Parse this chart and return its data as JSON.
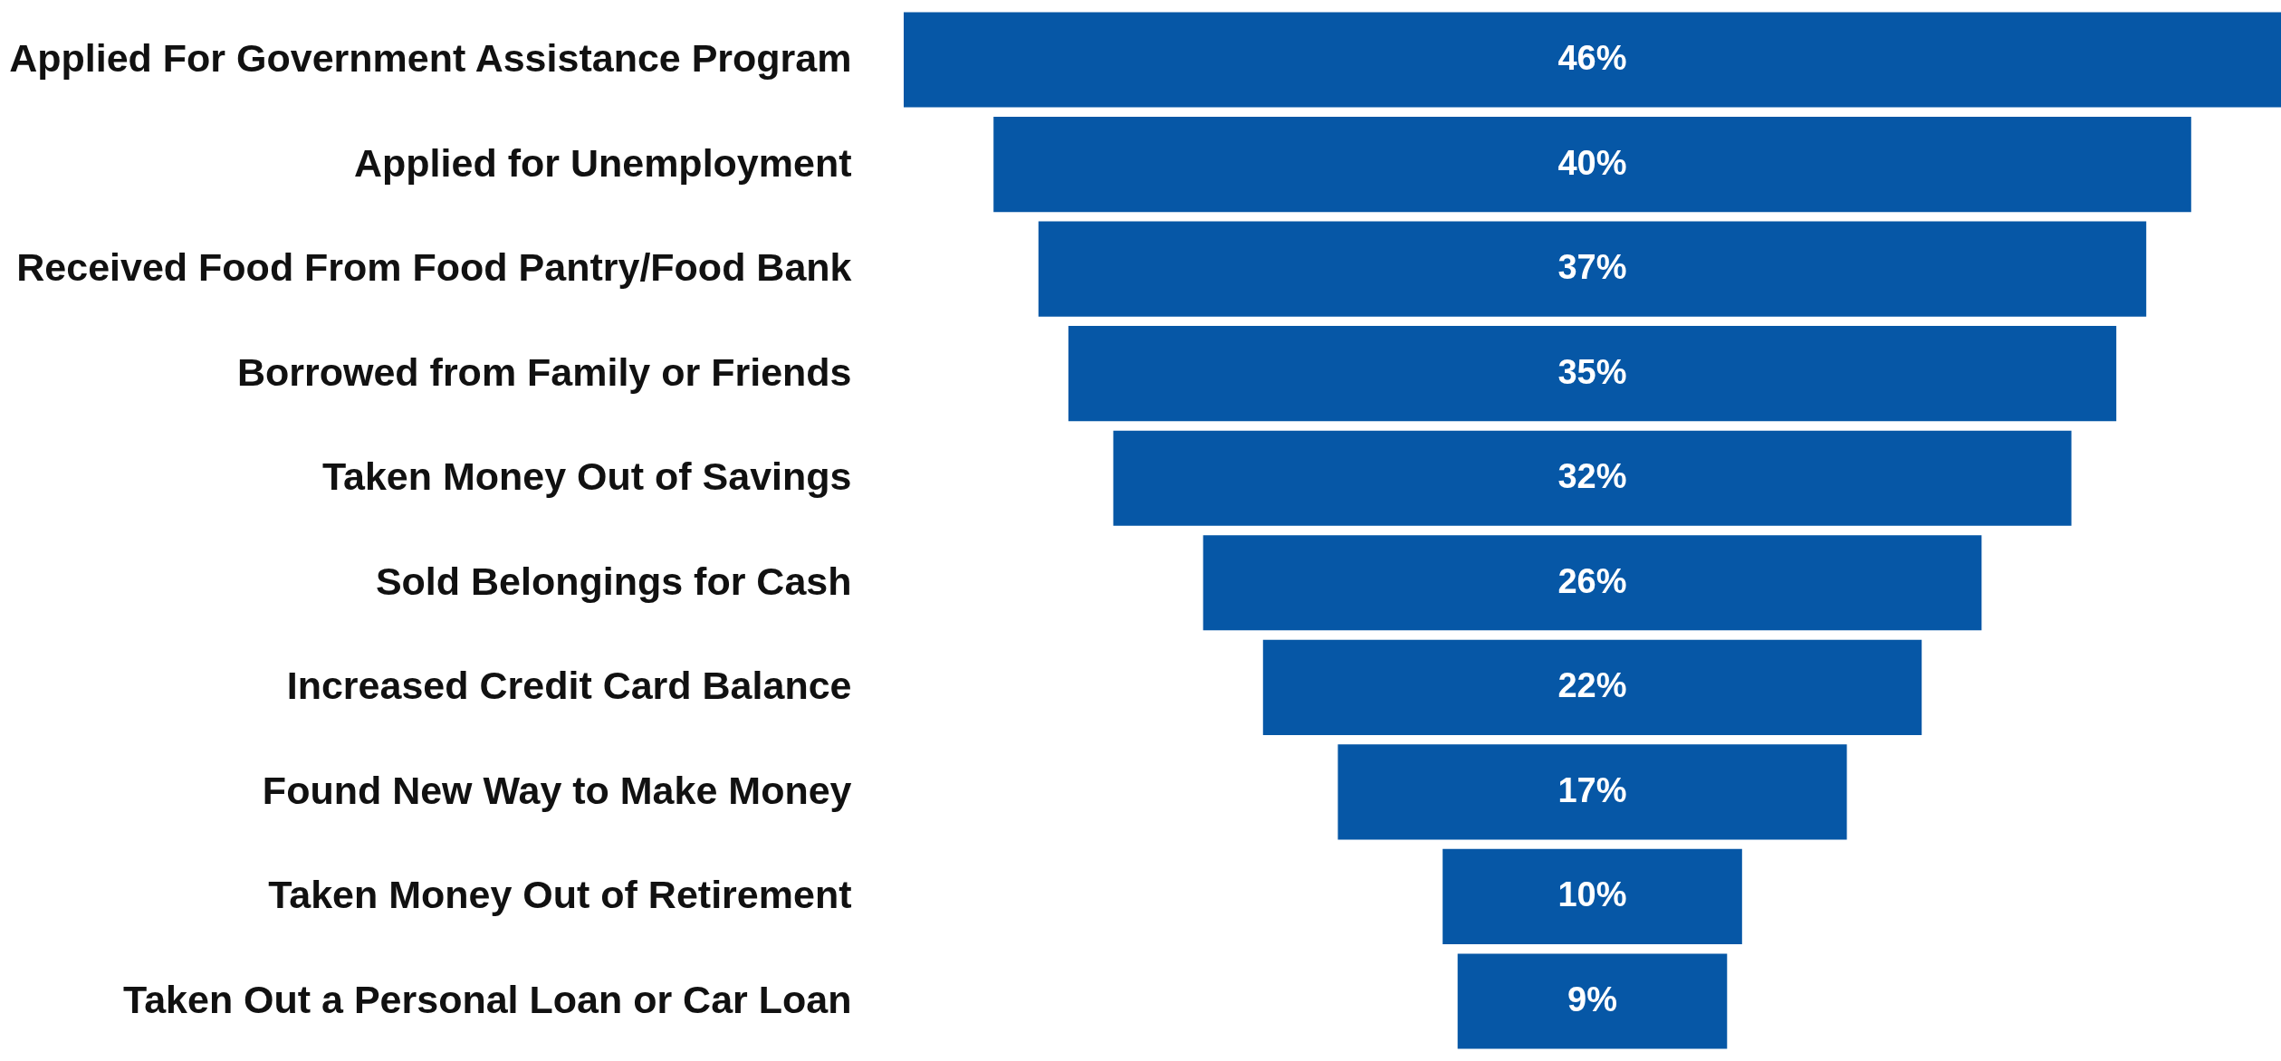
{
  "chart_data": {
    "type": "other",
    "color": "#0657a6",
    "categories": [
      "Applied For Government Assistance Program",
      "Applied for Unemployment",
      "Received Food From Food Pantry/Food Bank",
      "Borrowed from Family or Friends",
      "Taken Money Out of Savings",
      "Sold Belongings for Cash",
      "Increased Credit Card Balance",
      "Found New Way to Make Money",
      "Taken Money Out of Retirement",
      "Taken Out a Personal Loan or Car Loan"
    ],
    "values": [
      46,
      40,
      37,
      35,
      32,
      26,
      22,
      17,
      10,
      9
    ],
    "value_labels": [
      "46%",
      "40%",
      "37%",
      "35%",
      "32%",
      "26%",
      "22%",
      "17%",
      "10%",
      "9%"
    ]
  }
}
